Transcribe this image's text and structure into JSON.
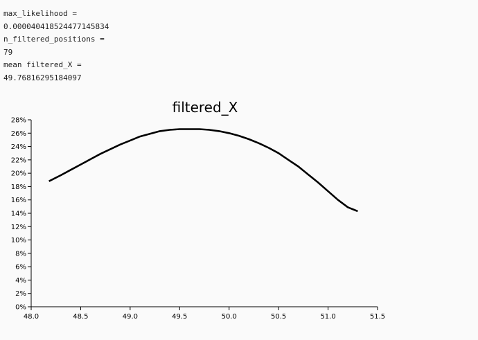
{
  "readout": {
    "max_likelihood_label": "max_likelihood =",
    "max_likelihood_value": "0.000040418524477145834",
    "n_filtered_positions_label": "n_filtered_positions =",
    "n_filtered_positions_value": "79",
    "mean_filtered_x_label": "mean filtered_X =",
    "mean_filtered_x_value": "49.76816295184097"
  },
  "chart_data": {
    "type": "line",
    "title": "filtered_X",
    "xlabel": "",
    "ylabel": "",
    "xlim": [
      48.0,
      51.5
    ],
    "ylim": [
      0,
      0.28
    ],
    "y_format": "percent",
    "grid": false,
    "legend": "none",
    "x_ticks": [
      "48.0",
      "48.5",
      "49.0",
      "49.5",
      "50.0",
      "50.5",
      "51.0",
      "51.5"
    ],
    "y_ticks": [
      "0%",
      "2%",
      "4%",
      "6%",
      "8%",
      "10%",
      "12%",
      "14%",
      "16%",
      "18%",
      "20%",
      "22%",
      "24%",
      "26%",
      "28%"
    ],
    "line_color": "#000000",
    "series": [
      {
        "x": [
          48.18,
          48.3,
          48.4,
          48.5,
          48.6,
          48.7,
          48.8,
          48.9,
          49.0,
          49.1,
          49.2,
          49.3,
          49.4,
          49.5,
          49.6,
          49.7,
          49.8,
          49.9,
          50.0,
          50.1,
          50.2,
          50.3,
          50.4,
          50.5,
          50.6,
          50.7,
          50.8,
          50.9,
          51.0,
          51.1,
          51.2,
          51.3
        ],
        "y": [
          0.188,
          0.197,
          0.205,
          0.213,
          0.221,
          0.229,
          0.236,
          0.243,
          0.249,
          0.255,
          0.259,
          0.263,
          0.265,
          0.266,
          0.266,
          0.266,
          0.265,
          0.263,
          0.26,
          0.256,
          0.251,
          0.245,
          0.238,
          0.23,
          0.22,
          0.21,
          0.198,
          0.186,
          0.173,
          0.16,
          0.149,
          0.143
        ]
      }
    ]
  }
}
